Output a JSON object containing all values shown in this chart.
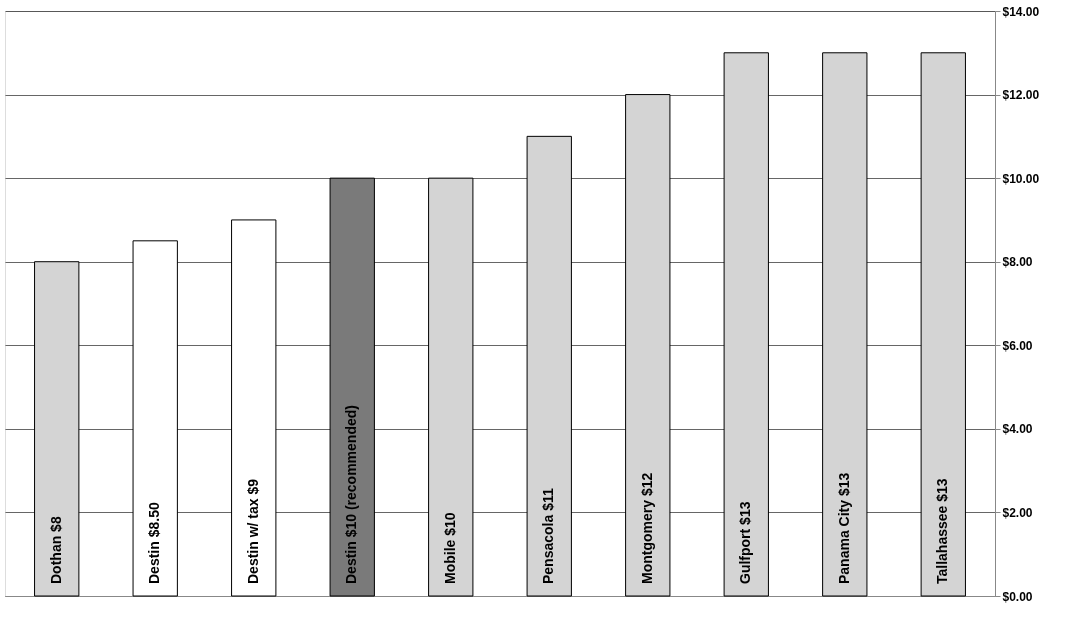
{
  "chart_data": {
    "type": "bar",
    "categories": [
      "Dothan $8",
      "Destin $8.50",
      "Destin w/ tax $9",
      "Destin $10     (recommended)",
      "Mobile $10",
      "Pensacola $11",
      "Montgomery $12",
      "Gulfport $13",
      "Panama City $13",
      "Tallahassee $13"
    ],
    "values": [
      8,
      8.5,
      9,
      10,
      10,
      11,
      12,
      13,
      13,
      13
    ],
    "colors": [
      "#d4d4d4",
      "#ffffff",
      "#ffffff",
      "#7a7a7a",
      "#d4d4d4",
      "#d4d4d4",
      "#d4d4d4",
      "#d4d4d4",
      "#d4d4d4",
      "#d4d4d4"
    ],
    "ylim": [
      0,
      14
    ],
    "yticks": [
      {
        "value": 0,
        "label": "$0.00"
      },
      {
        "value": 2,
        "label": "$2.00"
      },
      {
        "value": 4,
        "label": "$4.00"
      },
      {
        "value": 6,
        "label": "$6.00"
      },
      {
        "value": 8,
        "label": "$8.00"
      },
      {
        "value": 10,
        "label": "$10.00"
      },
      {
        "value": 12,
        "label": "$12.00"
      },
      {
        "value": 14,
        "label": "$14.00"
      }
    ],
    "grid": "y",
    "tick_labels": "y"
  }
}
